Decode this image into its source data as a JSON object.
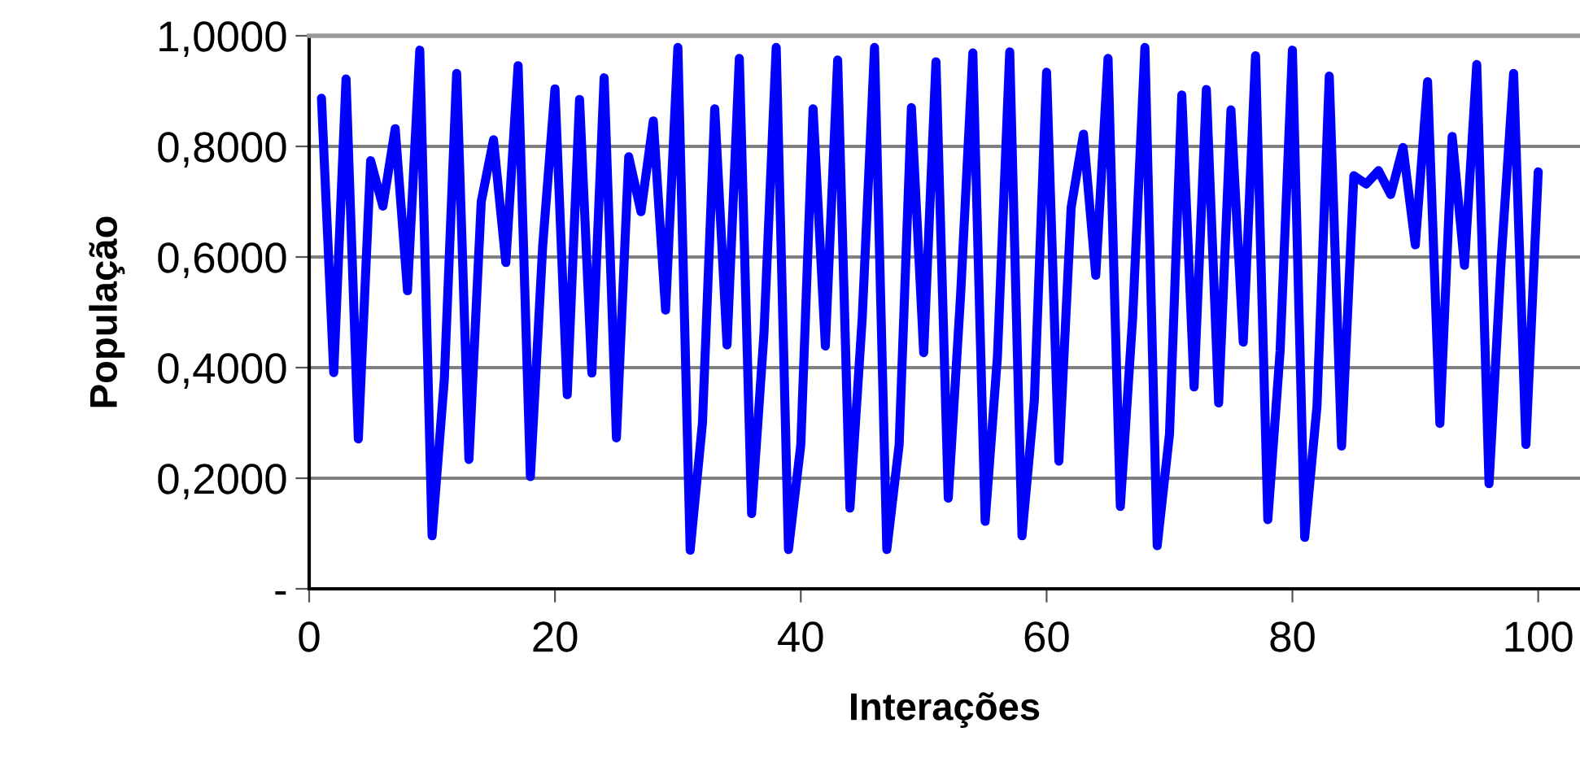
{
  "chart_data": {
    "type": "line",
    "xlabel": "Interações",
    "ylabel": "População",
    "xlim": [
      0,
      103.4
    ],
    "xticks": [
      0,
      20,
      40,
      60,
      80,
      100
    ],
    "ylim": [
      0,
      1
    ],
    "yticks": [
      {
        "value": 0,
        "label": "-"
      },
      {
        "value": 0.2,
        "label": "0,2000"
      },
      {
        "value": 0.4,
        "label": "0,4000"
      },
      {
        "value": 0.6,
        "label": "0,6000"
      },
      {
        "value": 0.8,
        "label": "0,8000"
      },
      {
        "value": 1.0,
        "label": "1,0000"
      }
    ],
    "grid": "y",
    "marker": "none",
    "line_style": "solid",
    "x": [
      1,
      2,
      3,
      4,
      5,
      6,
      7,
      8,
      9,
      10,
      11,
      12,
      13,
      14,
      15,
      16,
      17,
      18,
      19,
      20,
      21,
      22,
      23,
      24,
      25,
      26,
      27,
      28,
      29,
      30,
      31,
      32,
      33,
      34,
      35,
      36,
      37,
      38,
      39,
      40,
      41,
      42,
      43,
      44,
      45,
      46,
      47,
      48,
      49,
      50,
      51,
      52,
      53,
      54,
      55,
      56,
      57,
      58,
      59,
      60,
      61,
      62,
      63,
      64,
      65,
      66,
      67,
      68,
      69,
      70,
      71,
      72,
      73,
      74,
      75,
      76,
      77,
      78,
      79,
      80,
      81,
      82,
      83,
      84,
      85,
      86,
      87,
      88,
      89,
      90,
      91,
      92,
      93,
      94,
      95,
      96,
      97,
      98,
      99,
      100
    ],
    "series": [
      {
        "color": "#0000ff",
        "values": [
          0.887,
          0.391,
          0.922,
          0.271,
          0.774,
          0.692,
          0.832,
          0.539,
          0.974,
          0.096,
          0.38,
          0.932,
          0.234,
          0.7,
          0.812,
          0.59,
          0.946,
          0.203,
          0.62,
          0.904,
          0.351,
          0.885,
          0.39,
          0.924,
          0.273,
          0.781,
          0.682,
          0.846,
          0.504,
          0.979,
          0.07,
          0.3,
          0.868,
          0.441,
          0.959,
          0.136,
          0.46,
          0.979,
          0.071,
          0.26,
          0.868,
          0.439,
          0.956,
          0.146,
          0.49,
          0.979,
          0.071,
          0.26,
          0.87,
          0.427,
          0.953,
          0.164,
          0.53,
          0.969,
          0.122,
          0.42,
          0.971,
          0.096,
          0.34,
          0.934,
          0.231,
          0.69,
          0.822,
          0.567,
          0.959,
          0.149,
          0.49,
          0.979,
          0.078,
          0.28,
          0.893,
          0.365,
          0.903,
          0.336,
          0.866,
          0.446,
          0.964,
          0.125,
          0.43,
          0.974,
          0.093,
          0.33,
          0.927,
          0.258,
          0.747,
          0.732,
          0.756,
          0.713,
          0.798,
          0.622,
          0.917,
          0.299,
          0.818,
          0.585,
          0.948,
          0.19,
          0.6,
          0.932,
          0.261,
          0.754
        ]
      }
    ]
  }
}
